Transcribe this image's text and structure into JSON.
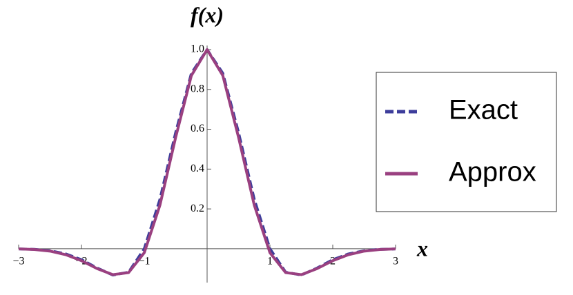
{
  "chart_data": {
    "type": "line",
    "x_label": "x",
    "y_label": "f(x)",
    "x": [
      -3,
      -2.75,
      -2.5,
      -2.25,
      -2,
      -1.75,
      -1.5,
      -1.25,
      -1,
      -0.75,
      -0.5,
      -0.25,
      0,
      0.25,
      0.5,
      0.75,
      1,
      1.25,
      1.5,
      1.75,
      2,
      2.25,
      2.5,
      2.75,
      3
    ],
    "series": [
      {
        "name": "Exact",
        "color": "#3d3d9b",
        "dash": true,
        "values": [
          -0.001,
          -0.003,
          -0.01,
          -0.026,
          -0.055,
          -0.097,
          -0.132,
          -0.118,
          0,
          0.249,
          0.584,
          0.881,
          1,
          0.881,
          0.584,
          0.249,
          0,
          -0.118,
          -0.132,
          -0.097,
          -0.055,
          -0.026,
          -0.01,
          -0.003,
          -0.001
        ]
      },
      {
        "name": "Approx",
        "color": "#9a4080",
        "dash": false,
        "values": [
          -0.001,
          -0.004,
          -0.012,
          -0.03,
          -0.06,
          -0.1,
          -0.13,
          -0.12,
          -0.02,
          0.22,
          0.56,
          0.87,
          1,
          0.87,
          0.56,
          0.22,
          -0.02,
          -0.12,
          -0.13,
          -0.1,
          -0.06,
          -0.03,
          -0.012,
          -0.004,
          -0.001
        ]
      }
    ],
    "xlim": [
      -3,
      3
    ],
    "ylim": [
      -0.17,
      1.0
    ],
    "xticks": [
      {
        "value": -3,
        "label": "−3"
      },
      {
        "value": -2,
        "label": "−2"
      },
      {
        "value": -1,
        "label": "−1"
      },
      1,
      2,
      3
    ],
    "yticks": [
      0.2,
      0.4,
      0.6,
      0.8,
      {
        "value": 1,
        "label": "1.0"
      }
    ],
    "legend": "right"
  }
}
